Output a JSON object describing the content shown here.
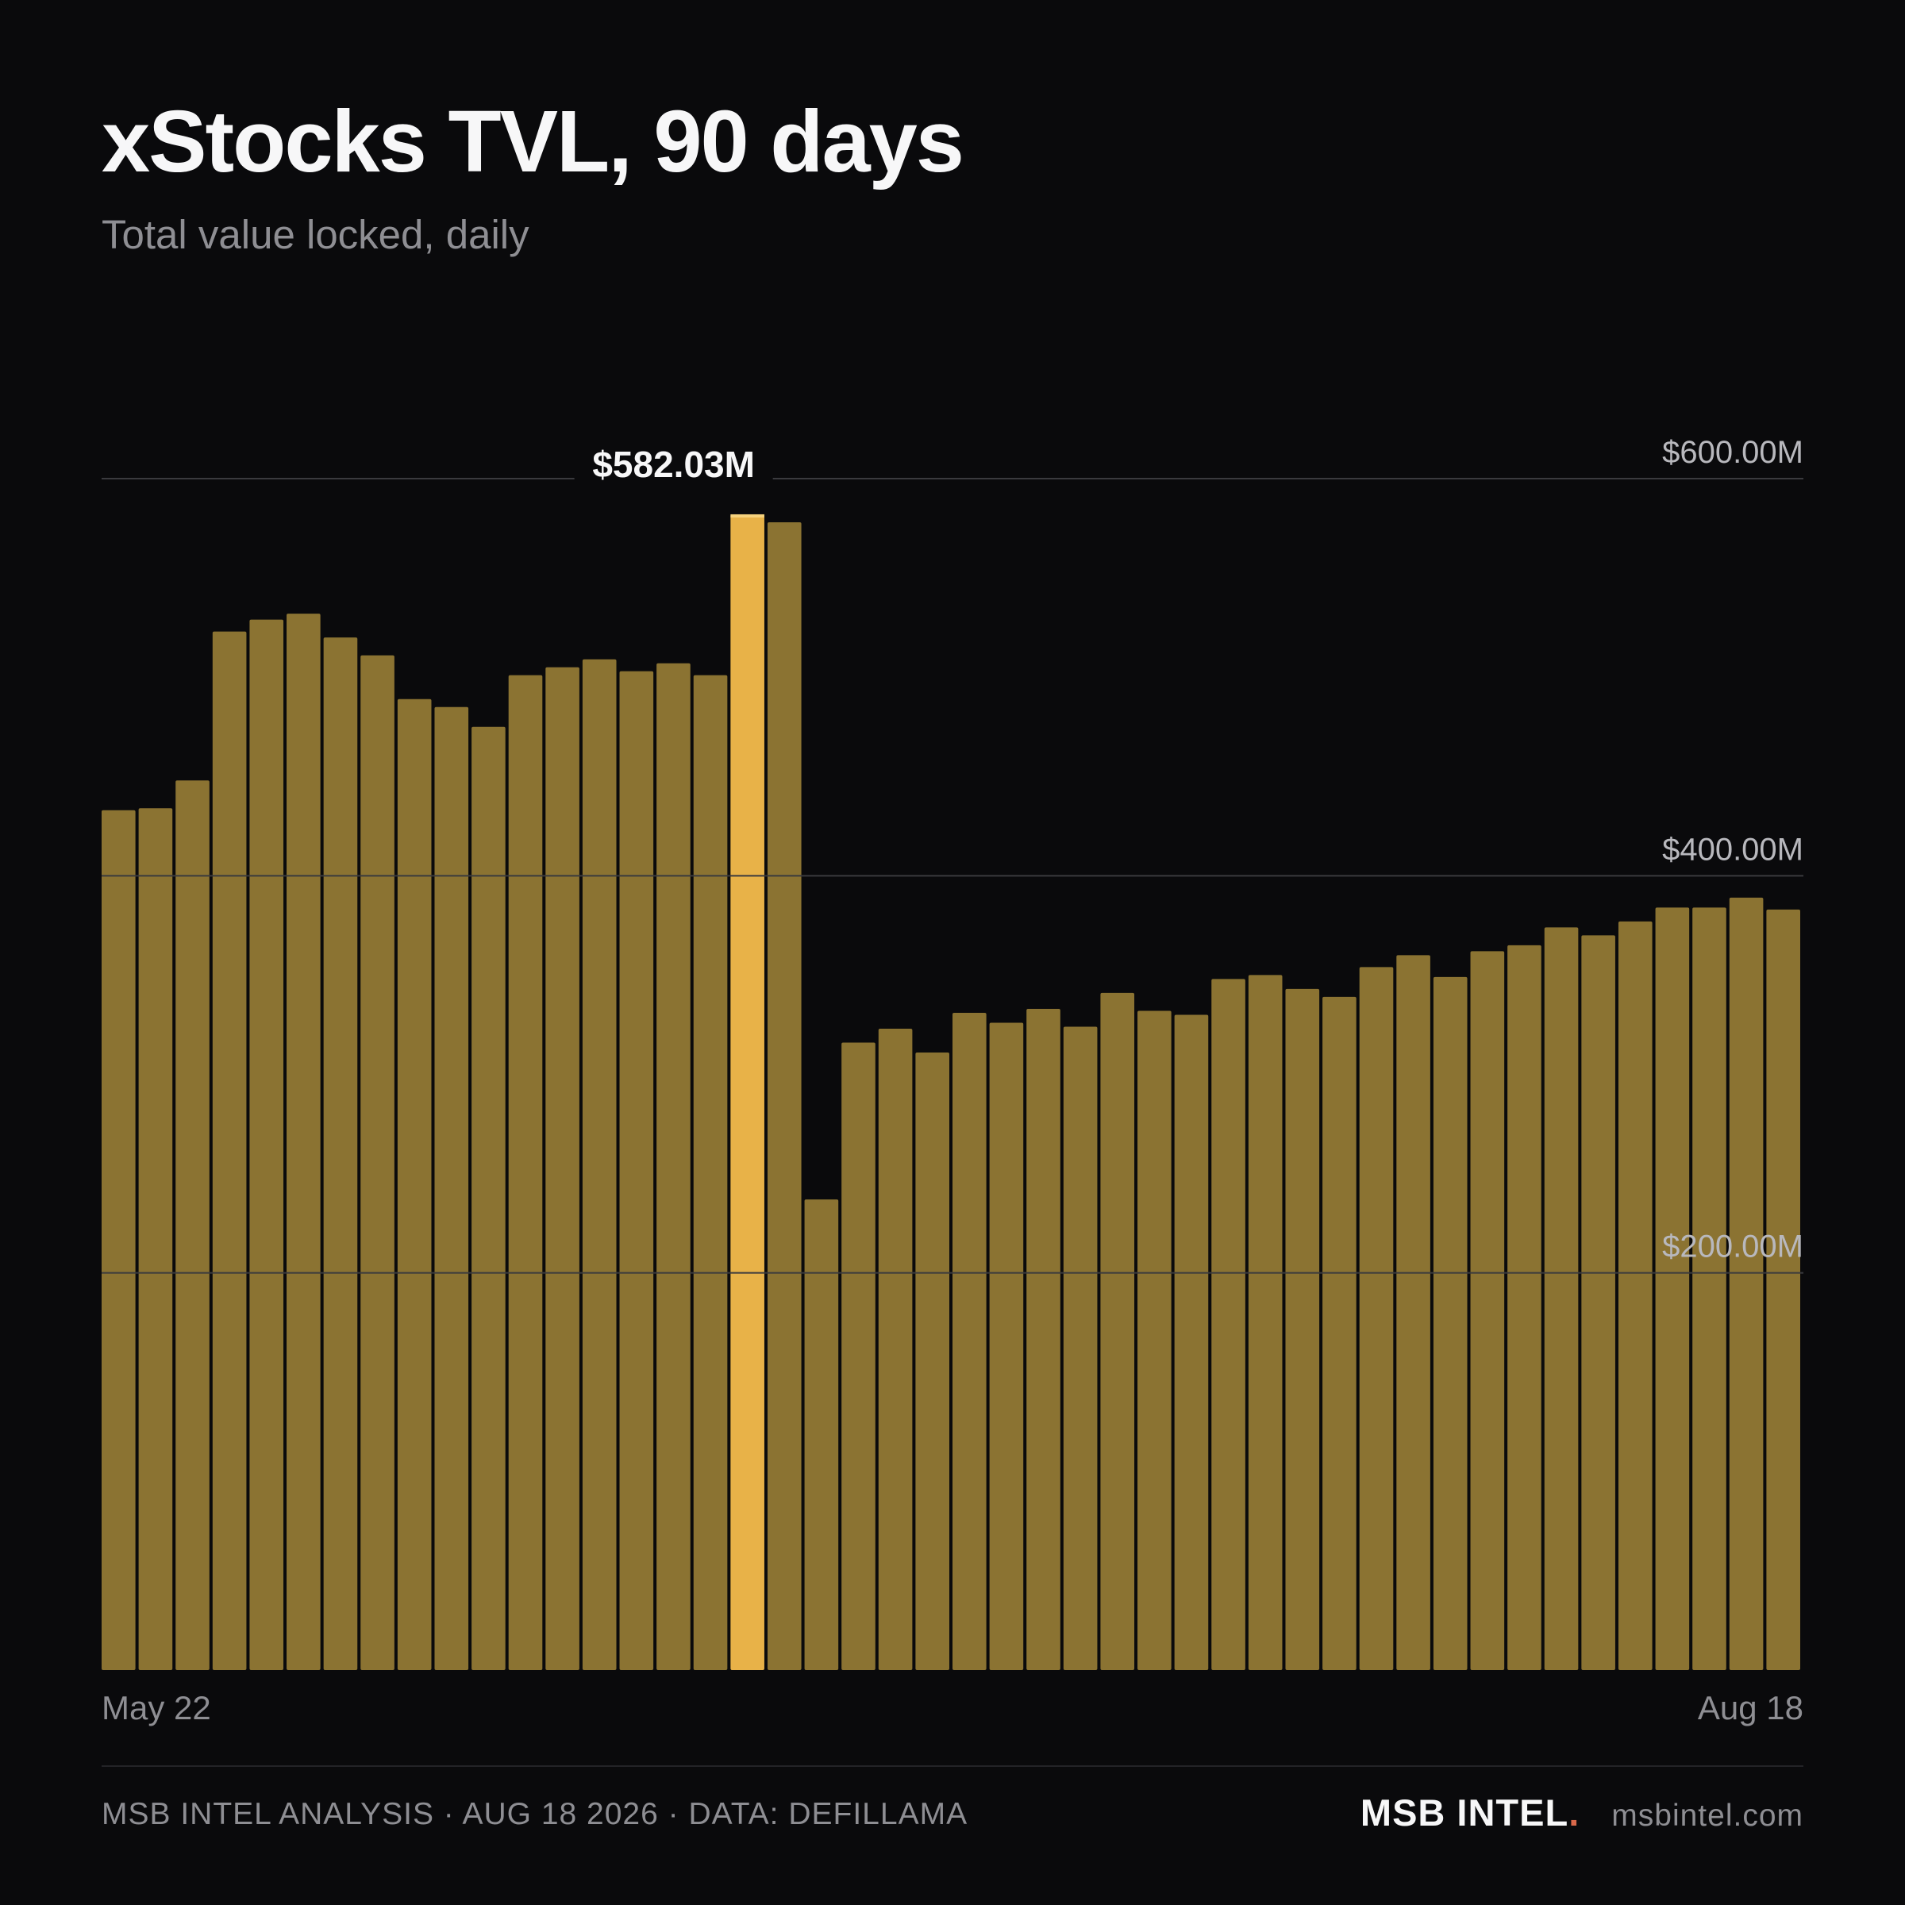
{
  "title": "xStocks TVL, 90 days",
  "subtitle": "Total value locked, daily",
  "footer": {
    "source": "MSB INTEL ANALYSIS · AUG 18 2026 · DATA: DEFILLAMA",
    "brand": "MSB INTEL",
    "brand_dot": ".",
    "site": "msbintel.com"
  },
  "colors": {
    "background": "#0a0a0c",
    "bar": "#8b7332",
    "highlight_bar": "#e8b248",
    "gridline": "#3a3a3e",
    "brand_dot": "#d9684a"
  },
  "chart_data": {
    "type": "bar",
    "title": "xStocks TVL, 90 days",
    "subtitle": "Total value locked, daily",
    "xlabel": "",
    "ylabel": "",
    "x_tick_labels": [
      "May 22",
      "Aug 18"
    ],
    "y_ticks": [
      {
        "value": 200,
        "label": "$200.00M"
      },
      {
        "value": 400,
        "label": "$400.00M"
      },
      {
        "value": 600,
        "label": "$600.00M"
      }
    ],
    "ylim": [
      0,
      600
    ],
    "unit": "$M",
    "grid": true,
    "values": [
      433,
      434,
      448,
      523,
      529,
      532,
      520,
      511,
      489,
      485,
      475,
      501,
      505,
      509,
      503,
      507,
      501,
      582.03,
      578,
      237,
      316,
      323,
      311,
      331,
      326,
      333,
      324,
      341,
      332,
      330,
      348,
      350,
      343,
      339,
      354,
      360,
      349,
      362,
      365,
      374,
      370,
      377,
      384,
      384,
      389,
      383
    ],
    "highlight": {
      "index": 17,
      "label": "$582.03M"
    }
  }
}
